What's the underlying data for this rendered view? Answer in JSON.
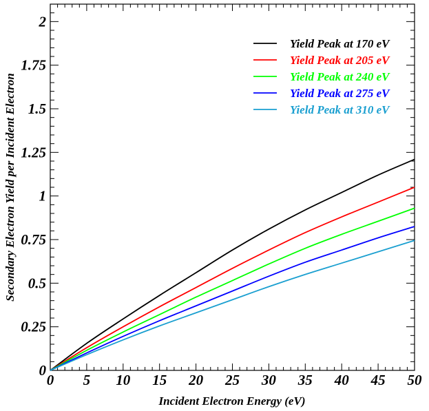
{
  "chart_data": {
    "type": "line",
    "xlabel": "Incident Electron Energy (eV)",
    "ylabel": "Secondary Electron Yield per Incident Electron",
    "xlim": [
      0,
      50
    ],
    "ylim": [
      0,
      2.1
    ],
    "x_ticks": [
      0,
      5,
      10,
      15,
      20,
      25,
      30,
      35,
      40,
      45,
      50
    ],
    "x_tick_labels": [
      "0",
      "5",
      "10",
      "15",
      "20",
      "25",
      "30",
      "35",
      "40",
      "45",
      "50"
    ],
    "y_ticks": [
      0,
      0.25,
      0.5,
      0.75,
      1,
      1.25,
      1.5,
      1.75,
      2
    ],
    "y_tick_labels": [
      "0",
      "0.25",
      "0.5",
      "0.75",
      "1",
      "1.25",
      "1.5",
      "1.75",
      "2"
    ],
    "grid": false,
    "legend_position": "top-right",
    "x": [
      0,
      5,
      10,
      15,
      20,
      25,
      30,
      35,
      40,
      45,
      50
    ],
    "series": [
      {
        "name": "Yield Peak at 170 eV",
        "color": "#000000",
        "values": [
          0,
          0.155,
          0.295,
          0.43,
          0.56,
          0.69,
          0.81,
          0.92,
          1.02,
          1.12,
          1.21
        ]
      },
      {
        "name": "Yield Peak at 205 eV",
        "color": "#ff0000",
        "values": [
          0,
          0.13,
          0.25,
          0.365,
          0.475,
          0.585,
          0.69,
          0.79,
          0.88,
          0.965,
          1.05
        ]
      },
      {
        "name": "Yield Peak at 240 eV",
        "color": "#00ff00",
        "values": [
          0,
          0.115,
          0.22,
          0.32,
          0.42,
          0.515,
          0.61,
          0.7,
          0.78,
          0.855,
          0.93
        ]
      },
      {
        "name": "Yield Peak at 275 eV",
        "color": "#0000ff",
        "values": [
          0,
          0.1,
          0.195,
          0.285,
          0.37,
          0.455,
          0.54,
          0.62,
          0.69,
          0.76,
          0.825
        ]
      },
      {
        "name": "Yield Peak at 310 eV",
        "color": "#1a9fd0",
        "values": [
          0,
          0.09,
          0.175,
          0.255,
          0.33,
          0.405,
          0.48,
          0.55,
          0.615,
          0.68,
          0.745
        ]
      }
    ]
  }
}
